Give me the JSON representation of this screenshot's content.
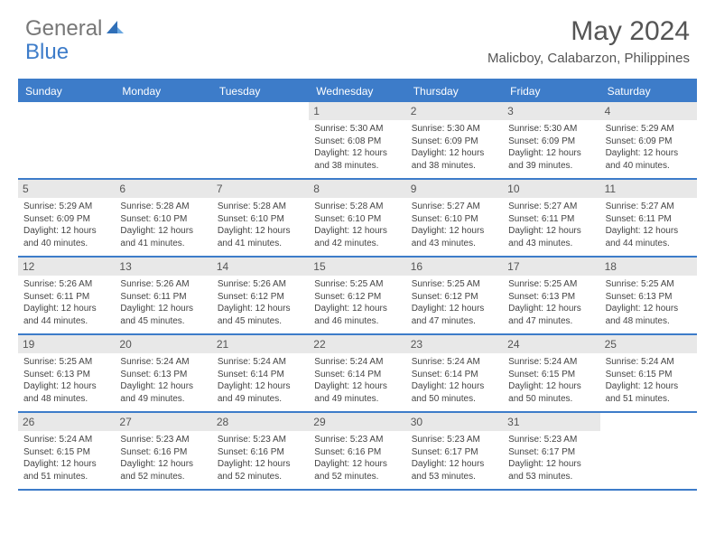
{
  "logo": {
    "general": "General",
    "blue": "Blue"
  },
  "title": "May 2024",
  "location": "Malicboy, Calabarzon, Philippines",
  "colors": {
    "accent": "#3d7cc9",
    "day_header_bg": "#e8e8e8",
    "text": "#444444",
    "background": "#ffffff"
  },
  "days_of_week": [
    "Sunday",
    "Monday",
    "Tuesday",
    "Wednesday",
    "Thursday",
    "Friday",
    "Saturday"
  ],
  "weeks": [
    [
      {
        "empty": true
      },
      {
        "empty": true
      },
      {
        "empty": true
      },
      {
        "day": "1",
        "sunrise": "Sunrise: 5:30 AM",
        "sunset": "Sunset: 6:08 PM",
        "daylight": "Daylight: 12 hours and 38 minutes."
      },
      {
        "day": "2",
        "sunrise": "Sunrise: 5:30 AM",
        "sunset": "Sunset: 6:09 PM",
        "daylight": "Daylight: 12 hours and 38 minutes."
      },
      {
        "day": "3",
        "sunrise": "Sunrise: 5:30 AM",
        "sunset": "Sunset: 6:09 PM",
        "daylight": "Daylight: 12 hours and 39 minutes."
      },
      {
        "day": "4",
        "sunrise": "Sunrise: 5:29 AM",
        "sunset": "Sunset: 6:09 PM",
        "daylight": "Daylight: 12 hours and 40 minutes."
      }
    ],
    [
      {
        "day": "5",
        "sunrise": "Sunrise: 5:29 AM",
        "sunset": "Sunset: 6:09 PM",
        "daylight": "Daylight: 12 hours and 40 minutes."
      },
      {
        "day": "6",
        "sunrise": "Sunrise: 5:28 AM",
        "sunset": "Sunset: 6:10 PM",
        "daylight": "Daylight: 12 hours and 41 minutes."
      },
      {
        "day": "7",
        "sunrise": "Sunrise: 5:28 AM",
        "sunset": "Sunset: 6:10 PM",
        "daylight": "Daylight: 12 hours and 41 minutes."
      },
      {
        "day": "8",
        "sunrise": "Sunrise: 5:28 AM",
        "sunset": "Sunset: 6:10 PM",
        "daylight": "Daylight: 12 hours and 42 minutes."
      },
      {
        "day": "9",
        "sunrise": "Sunrise: 5:27 AM",
        "sunset": "Sunset: 6:10 PM",
        "daylight": "Daylight: 12 hours and 43 minutes."
      },
      {
        "day": "10",
        "sunrise": "Sunrise: 5:27 AM",
        "sunset": "Sunset: 6:11 PM",
        "daylight": "Daylight: 12 hours and 43 minutes."
      },
      {
        "day": "11",
        "sunrise": "Sunrise: 5:27 AM",
        "sunset": "Sunset: 6:11 PM",
        "daylight": "Daylight: 12 hours and 44 minutes."
      }
    ],
    [
      {
        "day": "12",
        "sunrise": "Sunrise: 5:26 AM",
        "sunset": "Sunset: 6:11 PM",
        "daylight": "Daylight: 12 hours and 44 minutes."
      },
      {
        "day": "13",
        "sunrise": "Sunrise: 5:26 AM",
        "sunset": "Sunset: 6:11 PM",
        "daylight": "Daylight: 12 hours and 45 minutes."
      },
      {
        "day": "14",
        "sunrise": "Sunrise: 5:26 AM",
        "sunset": "Sunset: 6:12 PM",
        "daylight": "Daylight: 12 hours and 45 minutes."
      },
      {
        "day": "15",
        "sunrise": "Sunrise: 5:25 AM",
        "sunset": "Sunset: 6:12 PM",
        "daylight": "Daylight: 12 hours and 46 minutes."
      },
      {
        "day": "16",
        "sunrise": "Sunrise: 5:25 AM",
        "sunset": "Sunset: 6:12 PM",
        "daylight": "Daylight: 12 hours and 47 minutes."
      },
      {
        "day": "17",
        "sunrise": "Sunrise: 5:25 AM",
        "sunset": "Sunset: 6:13 PM",
        "daylight": "Daylight: 12 hours and 47 minutes."
      },
      {
        "day": "18",
        "sunrise": "Sunrise: 5:25 AM",
        "sunset": "Sunset: 6:13 PM",
        "daylight": "Daylight: 12 hours and 48 minutes."
      }
    ],
    [
      {
        "day": "19",
        "sunrise": "Sunrise: 5:25 AM",
        "sunset": "Sunset: 6:13 PM",
        "daylight": "Daylight: 12 hours and 48 minutes."
      },
      {
        "day": "20",
        "sunrise": "Sunrise: 5:24 AM",
        "sunset": "Sunset: 6:13 PM",
        "daylight": "Daylight: 12 hours and 49 minutes."
      },
      {
        "day": "21",
        "sunrise": "Sunrise: 5:24 AM",
        "sunset": "Sunset: 6:14 PM",
        "daylight": "Daylight: 12 hours and 49 minutes."
      },
      {
        "day": "22",
        "sunrise": "Sunrise: 5:24 AM",
        "sunset": "Sunset: 6:14 PM",
        "daylight": "Daylight: 12 hours and 49 minutes."
      },
      {
        "day": "23",
        "sunrise": "Sunrise: 5:24 AM",
        "sunset": "Sunset: 6:14 PM",
        "daylight": "Daylight: 12 hours and 50 minutes."
      },
      {
        "day": "24",
        "sunrise": "Sunrise: 5:24 AM",
        "sunset": "Sunset: 6:15 PM",
        "daylight": "Daylight: 12 hours and 50 minutes."
      },
      {
        "day": "25",
        "sunrise": "Sunrise: 5:24 AM",
        "sunset": "Sunset: 6:15 PM",
        "daylight": "Daylight: 12 hours and 51 minutes."
      }
    ],
    [
      {
        "day": "26",
        "sunrise": "Sunrise: 5:24 AM",
        "sunset": "Sunset: 6:15 PM",
        "daylight": "Daylight: 12 hours and 51 minutes."
      },
      {
        "day": "27",
        "sunrise": "Sunrise: 5:23 AM",
        "sunset": "Sunset: 6:16 PM",
        "daylight": "Daylight: 12 hours and 52 minutes."
      },
      {
        "day": "28",
        "sunrise": "Sunrise: 5:23 AM",
        "sunset": "Sunset: 6:16 PM",
        "daylight": "Daylight: 12 hours and 52 minutes."
      },
      {
        "day": "29",
        "sunrise": "Sunrise: 5:23 AM",
        "sunset": "Sunset: 6:16 PM",
        "daylight": "Daylight: 12 hours and 52 minutes."
      },
      {
        "day": "30",
        "sunrise": "Sunrise: 5:23 AM",
        "sunset": "Sunset: 6:17 PM",
        "daylight": "Daylight: 12 hours and 53 minutes."
      },
      {
        "day": "31",
        "sunrise": "Sunrise: 5:23 AM",
        "sunset": "Sunset: 6:17 PM",
        "daylight": "Daylight: 12 hours and 53 minutes."
      },
      {
        "empty": true
      }
    ]
  ]
}
